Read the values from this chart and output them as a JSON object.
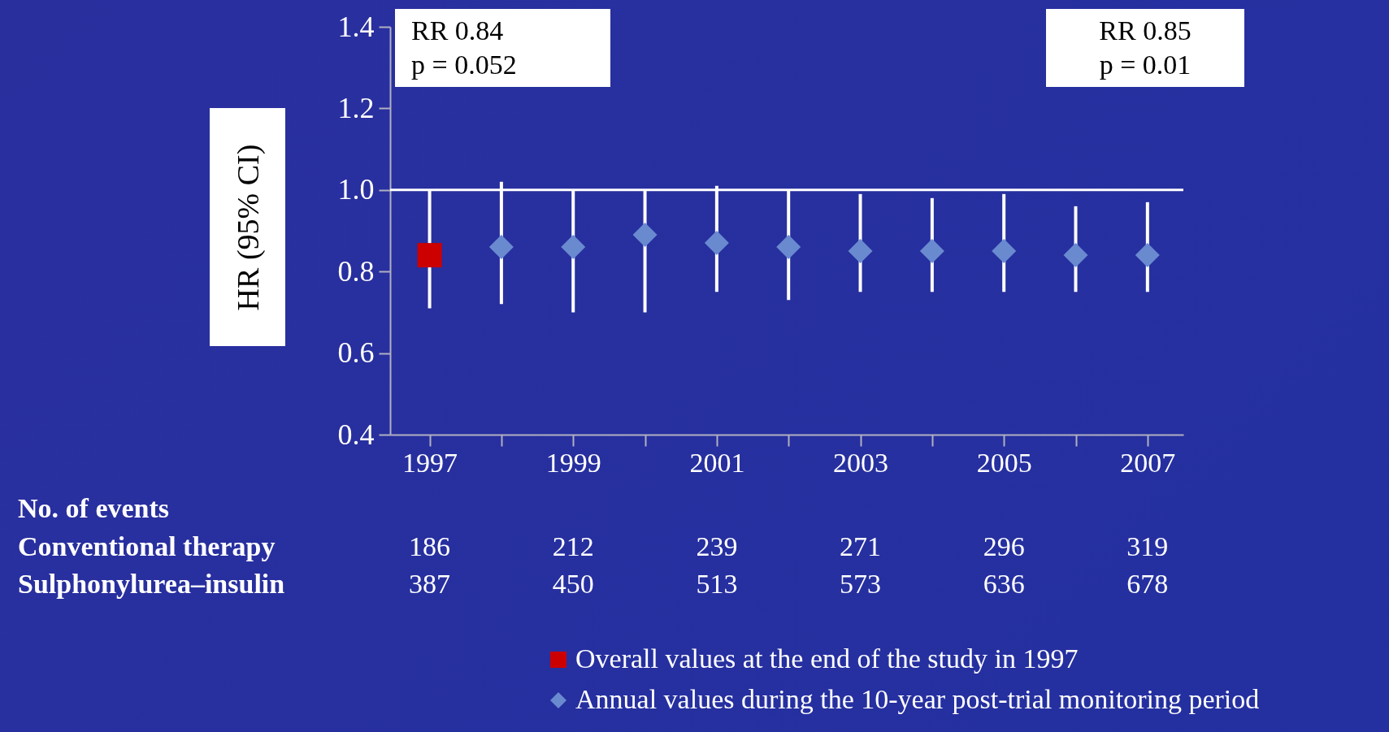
{
  "chart_data": {
    "type": "scatter",
    "ylabel": "HR (95% CI)",
    "xlim": [
      1996.45,
      2007.5
    ],
    "xticks": [
      1997,
      {
        "value": 1998,
        "label": null
      },
      1999,
      {
        "value": 2000,
        "label": null
      },
      2001,
      {
        "value": 2002,
        "label": null
      },
      2003,
      {
        "value": 2004,
        "label": null
      },
      2005,
      {
        "value": 2006,
        "label": null
      },
      2007
    ],
    "ylim": [
      0.4,
      1.4
    ],
    "yticks": [
      0.4,
      0.6,
      0.8,
      {
        "value": 1,
        "label": "1.0"
      },
      1.2,
      1.4
    ],
    "series": [
      {
        "name": "Overall values at the end of the study in 1997",
        "color": "#cc0000",
        "marker": "square",
        "x": [
          1997
        ],
        "values": [
          0.84
        ],
        "errors": [
          [
            0.71,
            1.0
          ]
        ]
      },
      {
        "name": "Annual values during the 10-year post-trial monitoring period",
        "color": "#6a8ad0",
        "marker": "diamond",
        "x": [
          1998,
          1999,
          2000,
          2001,
          2002,
          2003,
          2004,
          2005,
          2006,
          2007
        ],
        "values": [
          0.86,
          0.86,
          0.89,
          0.87,
          0.86,
          0.85,
          0.85,
          0.85,
          0.84,
          0.84
        ],
        "errors": [
          [
            0.72,
            1.02
          ],
          [
            0.7,
            1.0
          ],
          [
            0.7,
            1.0
          ],
          [
            0.75,
            1.01
          ],
          [
            0.73,
            1.0
          ],
          [
            0.75,
            0.99
          ],
          [
            0.75,
            0.98
          ],
          [
            0.75,
            0.99
          ],
          [
            0.75,
            0.96
          ],
          [
            0.75,
            0.97
          ]
        ]
      }
    ],
    "ref_lines": [
      {
        "axis": "y",
        "value": 1.0,
        "color": "#ffffff"
      }
    ],
    "legend": "bottom",
    "annotations": [
      "RR 0.84\np = 0.052",
      "RR 0.85\np = 0.01",
      "No. of events",
      "Conventional therapy",
      "Sulphonylurea–insulin",
      "186",
      "212",
      "239",
      "271",
      "296",
      "319",
      "387",
      "450",
      "513",
      "573",
      "636",
      "678"
    ]
  }
}
